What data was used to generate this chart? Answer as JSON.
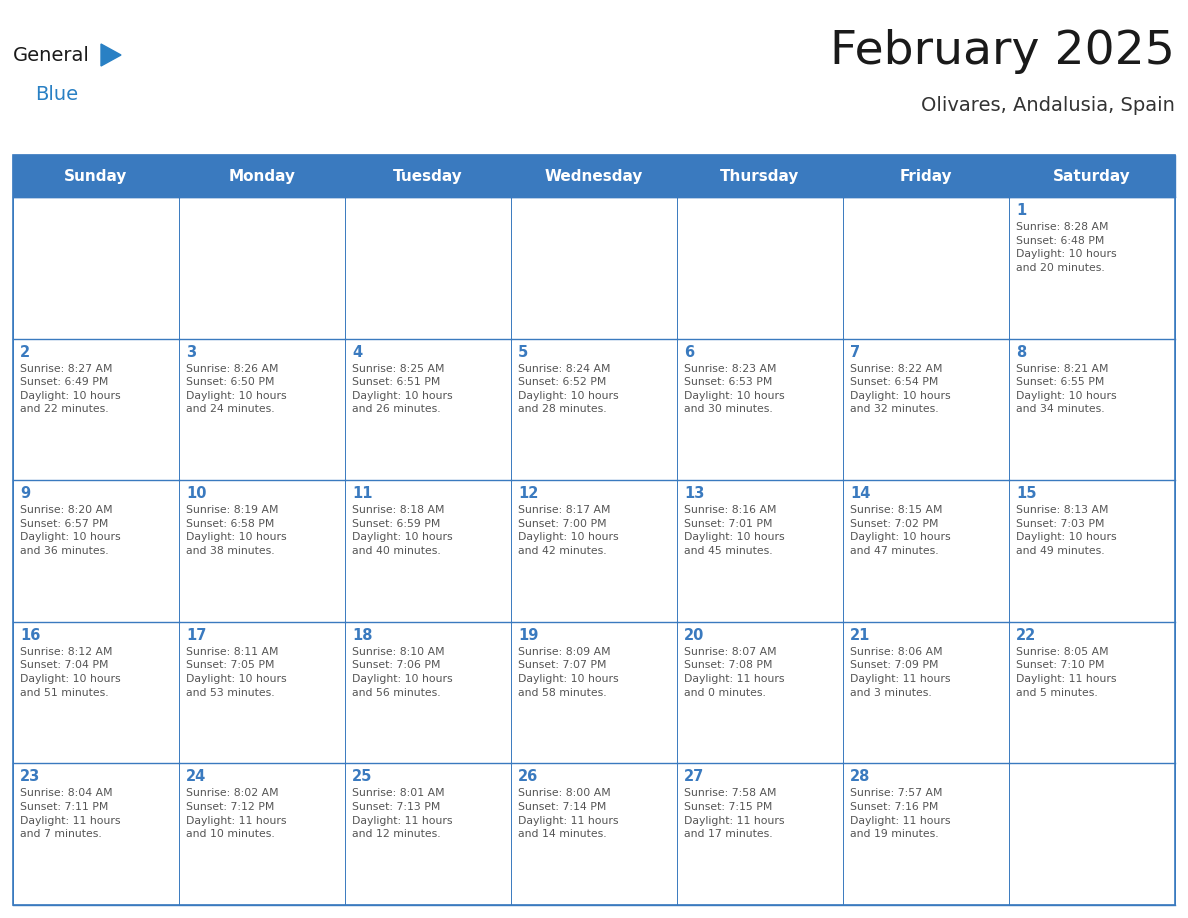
{
  "title": "February 2025",
  "subtitle": "Olivares, Andalusia, Spain",
  "header_color": "#3a7abf",
  "header_text_color": "#ffffff",
  "cell_bg_color": "#ffffff",
  "grid_line_color": "#3a7abf",
  "day_number_color": "#3a7abf",
  "info_text_color": "#555555",
  "days_of_week": [
    "Sunday",
    "Monday",
    "Tuesday",
    "Wednesday",
    "Thursday",
    "Friday",
    "Saturday"
  ],
  "weeks": [
    [
      {
        "day": "",
        "info": ""
      },
      {
        "day": "",
        "info": ""
      },
      {
        "day": "",
        "info": ""
      },
      {
        "day": "",
        "info": ""
      },
      {
        "day": "",
        "info": ""
      },
      {
        "day": "",
        "info": ""
      },
      {
        "day": "1",
        "info": "Sunrise: 8:28 AM\nSunset: 6:48 PM\nDaylight: 10 hours\nand 20 minutes."
      }
    ],
    [
      {
        "day": "2",
        "info": "Sunrise: 8:27 AM\nSunset: 6:49 PM\nDaylight: 10 hours\nand 22 minutes."
      },
      {
        "day": "3",
        "info": "Sunrise: 8:26 AM\nSunset: 6:50 PM\nDaylight: 10 hours\nand 24 minutes."
      },
      {
        "day": "4",
        "info": "Sunrise: 8:25 AM\nSunset: 6:51 PM\nDaylight: 10 hours\nand 26 minutes."
      },
      {
        "day": "5",
        "info": "Sunrise: 8:24 AM\nSunset: 6:52 PM\nDaylight: 10 hours\nand 28 minutes."
      },
      {
        "day": "6",
        "info": "Sunrise: 8:23 AM\nSunset: 6:53 PM\nDaylight: 10 hours\nand 30 minutes."
      },
      {
        "day": "7",
        "info": "Sunrise: 8:22 AM\nSunset: 6:54 PM\nDaylight: 10 hours\nand 32 minutes."
      },
      {
        "day": "8",
        "info": "Sunrise: 8:21 AM\nSunset: 6:55 PM\nDaylight: 10 hours\nand 34 minutes."
      }
    ],
    [
      {
        "day": "9",
        "info": "Sunrise: 8:20 AM\nSunset: 6:57 PM\nDaylight: 10 hours\nand 36 minutes."
      },
      {
        "day": "10",
        "info": "Sunrise: 8:19 AM\nSunset: 6:58 PM\nDaylight: 10 hours\nand 38 minutes."
      },
      {
        "day": "11",
        "info": "Sunrise: 8:18 AM\nSunset: 6:59 PM\nDaylight: 10 hours\nand 40 minutes."
      },
      {
        "day": "12",
        "info": "Sunrise: 8:17 AM\nSunset: 7:00 PM\nDaylight: 10 hours\nand 42 minutes."
      },
      {
        "day": "13",
        "info": "Sunrise: 8:16 AM\nSunset: 7:01 PM\nDaylight: 10 hours\nand 45 minutes."
      },
      {
        "day": "14",
        "info": "Sunrise: 8:15 AM\nSunset: 7:02 PM\nDaylight: 10 hours\nand 47 minutes."
      },
      {
        "day": "15",
        "info": "Sunrise: 8:13 AM\nSunset: 7:03 PM\nDaylight: 10 hours\nand 49 minutes."
      }
    ],
    [
      {
        "day": "16",
        "info": "Sunrise: 8:12 AM\nSunset: 7:04 PM\nDaylight: 10 hours\nand 51 minutes."
      },
      {
        "day": "17",
        "info": "Sunrise: 8:11 AM\nSunset: 7:05 PM\nDaylight: 10 hours\nand 53 minutes."
      },
      {
        "day": "18",
        "info": "Sunrise: 8:10 AM\nSunset: 7:06 PM\nDaylight: 10 hours\nand 56 minutes."
      },
      {
        "day": "19",
        "info": "Sunrise: 8:09 AM\nSunset: 7:07 PM\nDaylight: 10 hours\nand 58 minutes."
      },
      {
        "day": "20",
        "info": "Sunrise: 8:07 AM\nSunset: 7:08 PM\nDaylight: 11 hours\nand 0 minutes."
      },
      {
        "day": "21",
        "info": "Sunrise: 8:06 AM\nSunset: 7:09 PM\nDaylight: 11 hours\nand 3 minutes."
      },
      {
        "day": "22",
        "info": "Sunrise: 8:05 AM\nSunset: 7:10 PM\nDaylight: 11 hours\nand 5 minutes."
      }
    ],
    [
      {
        "day": "23",
        "info": "Sunrise: 8:04 AM\nSunset: 7:11 PM\nDaylight: 11 hours\nand 7 minutes."
      },
      {
        "day": "24",
        "info": "Sunrise: 8:02 AM\nSunset: 7:12 PM\nDaylight: 11 hours\nand 10 minutes."
      },
      {
        "day": "25",
        "info": "Sunrise: 8:01 AM\nSunset: 7:13 PM\nDaylight: 11 hours\nand 12 minutes."
      },
      {
        "day": "26",
        "info": "Sunrise: 8:00 AM\nSunset: 7:14 PM\nDaylight: 11 hours\nand 14 minutes."
      },
      {
        "day": "27",
        "info": "Sunrise: 7:58 AM\nSunset: 7:15 PM\nDaylight: 11 hours\nand 17 minutes."
      },
      {
        "day": "28",
        "info": "Sunrise: 7:57 AM\nSunset: 7:16 PM\nDaylight: 11 hours\nand 19 minutes."
      },
      {
        "day": "",
        "info": ""
      }
    ]
  ],
  "logo_general_color": "#1a1a1a",
  "logo_blue_color": "#2980c4",
  "logo_triangle_color": "#2980c4",
  "fig_width": 11.88,
  "fig_height": 9.18,
  "dpi": 100
}
